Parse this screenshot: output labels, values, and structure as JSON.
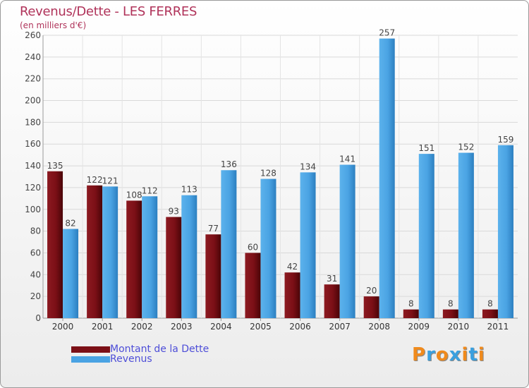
{
  "title": "Revenus/Dette - LES FERRES",
  "subtitle": "(en milliers d'€)",
  "legend": {
    "debt_label": "Montant de la Dette",
    "revenue_label": "Revenus"
  },
  "logo": {
    "letters": [
      "P",
      "r",
      "o",
      "x",
      "i",
      "t",
      "i"
    ],
    "colors": [
      "#f08a1c",
      "#3aa0df",
      "#f08a1c",
      "#3aa0df",
      "#f08a1c",
      "#3aa0df",
      "#f08a1c"
    ]
  },
  "colors": {
    "debt": "#7b0f16",
    "revenue": "#4aa3e3",
    "title": "#b0335a",
    "legend_text": "#4e4ed8"
  },
  "chart_data": {
    "type": "bar",
    "title": "Revenus/Dette - LES FERRES",
    "ylabel": "(en milliers d'€)",
    "xlabel": "",
    "ylim": [
      0,
      260
    ],
    "yticks": [
      0,
      20,
      40,
      60,
      80,
      100,
      120,
      140,
      160,
      180,
      200,
      220,
      240,
      260
    ],
    "grid": true,
    "categories": [
      "2000",
      "2001",
      "2002",
      "2003",
      "2004",
      "2005",
      "2006",
      "2007",
      "2008",
      "2009",
      "2010",
      "2011"
    ],
    "series": [
      {
        "name": "Montant de la Dette",
        "values": [
          135,
          122,
          108,
          93,
          77,
          60,
          42,
          31,
          20,
          8,
          8,
          8
        ]
      },
      {
        "name": "Revenus",
        "values": [
          82,
          121,
          112,
          113,
          136,
          128,
          134,
          141,
          257,
          151,
          152,
          159
        ]
      }
    ]
  }
}
